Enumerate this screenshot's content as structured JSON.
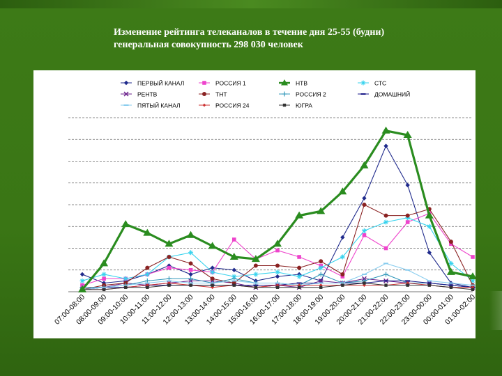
{
  "slide": {
    "title_line1": "Изменение рейтинга телеканалов в течение дня 25-55 (будни)",
    "title_line2": "генеральная совокупность 298 030 человек"
  },
  "chart_data": {
    "type": "line",
    "title": "Изменение рейтинга телеканалов в течение дня 25-55 (будни) генеральная совокупность 298 030 человек",
    "xlabel": "",
    "ylabel": "",
    "ylim": [
      0,
      8
    ],
    "grid": true,
    "legend_position": "top",
    "categories": [
      "07:00-08:00",
      "08:00-09:00",
      "09:00-10:00",
      "10:00-11:00",
      "11:00-12:00",
      "12:00-13:00",
      "13:00-14:00",
      "14:00-15:00",
      "15:00-16:00",
      "16:00-17:00",
      "17:00-18:00",
      "18:00-19:00",
      "19:00-20:00",
      "20:00-21:00",
      "21:00-22:00",
      "22:00-23:00",
      "23:00-00:00",
      "00:00-01:00",
      "01:00-02:00"
    ],
    "series": [
      {
        "name": "ПЕРВЫЙ КАНАЛ",
        "color": "#1f2a8c",
        "marker": "diamond",
        "values": [
          0.8,
          0.4,
          0.5,
          0.8,
          1.2,
          0.8,
          1.1,
          1.0,
          0.5,
          0.7,
          0.8,
          0.5,
          2.5,
          4.3,
          6.7,
          4.9,
          1.8,
          0.4,
          0.2
        ]
      },
      {
        "name": "РОССИЯ 1",
        "color": "#ee44cc",
        "marker": "square",
        "values": [
          0.3,
          0.6,
          0.6,
          0.8,
          1.1,
          1.0,
          0.9,
          2.4,
          1.5,
          1.9,
          1.6,
          1.2,
          0.7,
          2.6,
          2.0,
          3.2,
          3.6,
          2.2,
          1.6
        ]
      },
      {
        "name": "НТВ",
        "color": "#2a8c1f",
        "marker": "triangle",
        "values": [
          0.1,
          1.3,
          3.1,
          2.7,
          2.2,
          2.6,
          2.1,
          1.6,
          1.5,
          2.2,
          3.5,
          3.7,
          4.6,
          5.8,
          7.4,
          7.2,
          3.5,
          0.9,
          0.7
        ]
      },
      {
        "name": "СТС",
        "color": "#37d3ee",
        "marker": "star",
        "values": [
          0.5,
          0.8,
          0.6,
          0.8,
          1.6,
          1.8,
          0.9,
          0.7,
          0.8,
          0.9,
          0.7,
          1.1,
          1.6,
          2.8,
          3.2,
          3.4,
          3.0,
          1.3,
          0.5
        ]
      },
      {
        "name": "РЕНТВ",
        "color": "#6a1f8a",
        "marker": "x",
        "values": [
          0.1,
          0.2,
          0.4,
          0.3,
          0.4,
          0.5,
          0.5,
          0.4,
          0.2,
          0.3,
          0.2,
          0.5,
          0.4,
          0.6,
          0.5,
          0.4,
          0.4,
          0.3,
          0.2
        ]
      },
      {
        "name": "ТНТ",
        "color": "#8a2222",
        "marker": "circle",
        "values": [
          0.1,
          0.3,
          0.4,
          1.1,
          1.6,
          1.3,
          0.6,
          0.4,
          1.2,
          1.2,
          1.1,
          1.4,
          0.8,
          4.0,
          3.5,
          3.5,
          3.8,
          2.3,
          0.3
        ]
      },
      {
        "name": "РОССИЯ 2",
        "color": "#3399bb",
        "marker": "plus",
        "values": [
          0.2,
          0.2,
          0.3,
          0.5,
          0.6,
          0.6,
          0.4,
          0.6,
          0.4,
          0.4,
          0.3,
          0.8,
          0.4,
          0.5,
          0.8,
          0.4,
          0.4,
          0.3,
          0.2
        ]
      },
      {
        "name": "ДОМАШНИЙ",
        "color": "#1a1a88",
        "marker": "dash",
        "values": [
          0.1,
          0.2,
          0.2,
          0.3,
          0.3,
          0.3,
          0.3,
          0.3,
          0.3,
          0.3,
          0.4,
          0.4,
          0.4,
          0.4,
          0.5,
          0.5,
          0.4,
          0.3,
          0.2
        ]
      },
      {
        "name": "ПЯТЫЙ КАНАЛ",
        "color": "#88ccee",
        "marker": "dash",
        "values": [
          0.1,
          0.2,
          0.3,
          0.4,
          0.5,
          0.4,
          0.4,
          0.5,
          0.4,
          0.4,
          0.3,
          0.4,
          0.4,
          0.8,
          1.3,
          1.0,
          0.5,
          0.4,
          0.3
        ]
      },
      {
        "name": "РОССИЯ 24",
        "color": "#cc3333",
        "marker": "diamond-small",
        "values": [
          0.1,
          0.1,
          0.2,
          0.3,
          0.4,
          0.3,
          0.2,
          0.3,
          0.2,
          0.3,
          0.3,
          0.3,
          0.3,
          0.3,
          0.3,
          0.4,
          0.3,
          0.2,
          0.2
        ]
      },
      {
        "name": "ЮГРА",
        "color": "#333333",
        "marker": "square-small",
        "values": [
          0.1,
          0.1,
          0.2,
          0.2,
          0.3,
          0.3,
          0.3,
          0.3,
          0.2,
          0.2,
          0.2,
          0.2,
          0.3,
          0.4,
          0.3,
          0.3,
          0.3,
          0.2,
          0.1
        ]
      }
    ]
  }
}
